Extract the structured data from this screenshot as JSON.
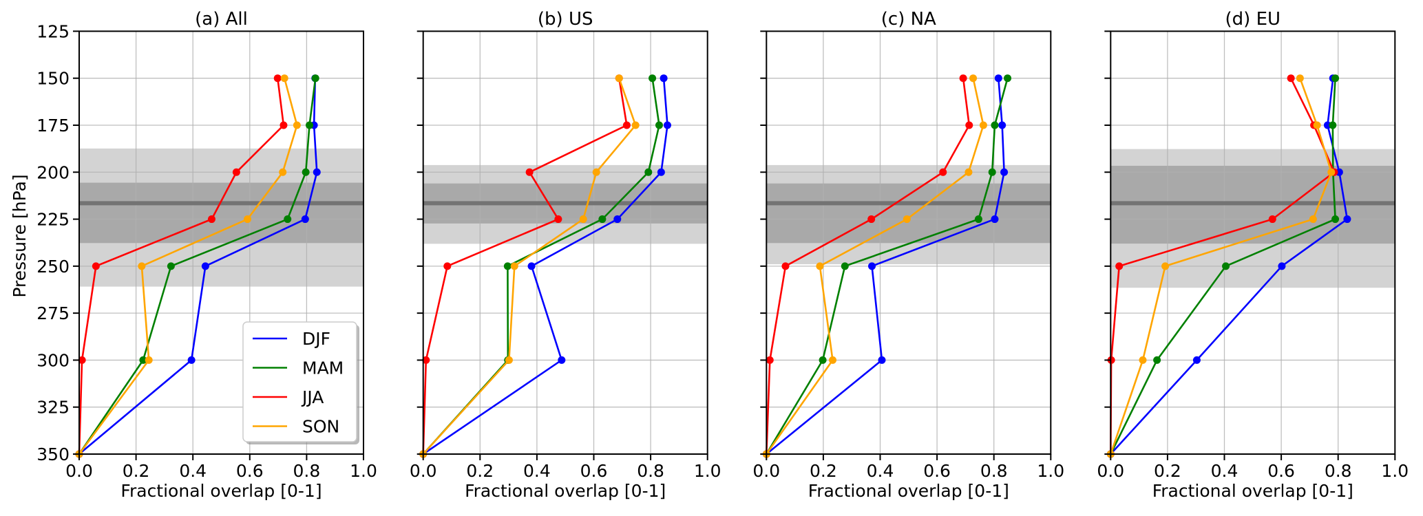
{
  "chart_data": {
    "type": "line",
    "ylabel": "Pressure [hPa]",
    "xlabel": "Fractional overlap [0-1]",
    "xlim": [
      0,
      1
    ],
    "ylim": [
      350,
      125
    ],
    "y_inverted": true,
    "grid": true,
    "xticks": [
      "0.0",
      "0.2",
      "0.4",
      "0.6",
      "0.8",
      "1.0"
    ],
    "xtick_values": [
      0,
      0.2,
      0.4,
      0.6,
      0.8,
      1.0
    ],
    "yticks": [
      "125",
      "150",
      "175",
      "200",
      "225",
      "250",
      "275",
      "300",
      "325",
      "350"
    ],
    "ytick_values": [
      125,
      150,
      175,
      200,
      225,
      250,
      275,
      300,
      325,
      350
    ],
    "legend": {
      "placement": "lower-right of panel (a)",
      "entries": [
        {
          "name": "DJF",
          "color": "#0000ff"
        },
        {
          "name": "MAM",
          "color": "#008000"
        },
        {
          "name": "JJA",
          "color": "#ff0000"
        },
        {
          "name": "SON",
          "color": "#ffa500"
        }
      ]
    },
    "pressure_levels": [
      150,
      175,
      200,
      225,
      250,
      300,
      350
    ],
    "band_colors": {
      "outer": "#d3d3d3",
      "inner": "#a9a9a9",
      "line": "#737373"
    },
    "panels": [
      {
        "title": "(a) All",
        "outer_band_hPa": [
          187.4,
          260.9
        ],
        "inner_band_hPa": [
          205.6,
          237.7
        ],
        "tropopause_hPa": 216.5,
        "series": {
          "DJF": [
            0.83,
            0.826,
            0.836,
            0.795,
            0.444,
            0.395,
            0
          ],
          "MAM": [
            0.831,
            0.81,
            0.797,
            0.733,
            0.323,
            0.225,
            0
          ],
          "JJA": [
            0.698,
            0.719,
            0.553,
            0.466,
            0.059,
            0.01,
            0
          ],
          "SON": [
            0.722,
            0.766,
            0.716,
            0.592,
            0.22,
            0.245,
            0
          ]
        }
      },
      {
        "title": "(b) US",
        "outer_band_hPa": [
          196.2,
          238.1
        ],
        "inner_band_hPa": [
          206.0,
          227.3
        ],
        "tropopause_hPa": 216.5,
        "series": {
          "DJF": [
            0.846,
            0.859,
            0.837,
            0.683,
            0.381,
            0.487,
            0
          ],
          "MAM": [
            0.806,
            0.83,
            0.792,
            0.63,
            0.297,
            0.298,
            0
          ],
          "JJA": [
            0.689,
            0.716,
            0.374,
            0.475,
            0.085,
            0.01,
            0
          ],
          "SON": [
            0.689,
            0.747,
            0.609,
            0.563,
            0.321,
            0.302,
            0
          ]
        }
      },
      {
        "title": "(c) NA",
        "outer_band_hPa": [
          196.2,
          249.0
        ],
        "inner_band_hPa": [
          206.0,
          237.7
        ],
        "tropopause_hPa": 216.5,
        "series": {
          "DJF": [
            0.816,
            0.829,
            0.836,
            0.803,
            0.371,
            0.406,
            0
          ],
          "MAM": [
            0.848,
            0.803,
            0.794,
            0.746,
            0.276,
            0.198,
            0
          ],
          "JJA": [
            0.692,
            0.713,
            0.621,
            0.369,
            0.067,
            0.012,
            0
          ],
          "SON": [
            0.727,
            0.763,
            0.711,
            0.494,
            0.188,
            0.233,
            0
          ]
        }
      },
      {
        "title": "(d) EU",
        "outer_band_hPa": [
          187.7,
          261.5
        ],
        "inner_band_hPa": [
          196.6,
          238.0
        ],
        "tropopause_hPa": 216.5,
        "series": {
          "DJF": [
            0.782,
            0.763,
            0.804,
            0.832,
            0.602,
            0.303,
            0
          ],
          "MAM": [
            0.79,
            0.781,
            0.782,
            0.79,
            0.405,
            0.163,
            0
          ],
          "JJA": [
            0.634,
            0.715,
            0.786,
            0.569,
            0.03,
            0.002,
            0
          ],
          "SON": [
            0.666,
            0.726,
            0.776,
            0.712,
            0.192,
            0.113,
            0
          ]
        }
      }
    ]
  }
}
